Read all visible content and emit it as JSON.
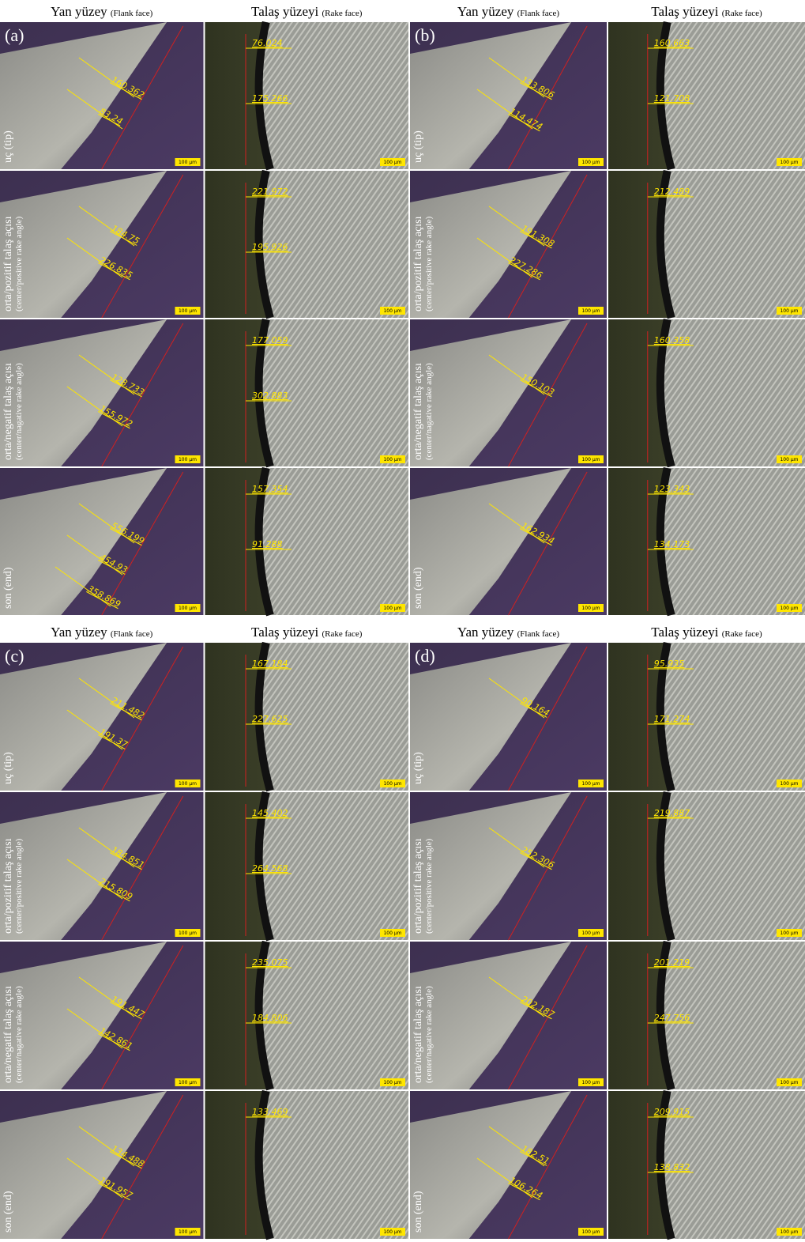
{
  "column_headers": [
    {
      "main": "Yan yüzey",
      "sub": "(Flank face)"
    },
    {
      "main": "Talaş yüzeyi",
      "sub": "(Rake face)"
    }
  ],
  "row_labels": [
    {
      "main": "uç (tip)"
    },
    {
      "main": "orta/pozitif talaş açısı",
      "sub": "(center/positive rake angle)"
    },
    {
      "main": "orta/negatif talaş açısı",
      "sub": "(center/nagative rake angle)"
    },
    {
      "main": "son (end)"
    }
  ],
  "scale_bar_label": "100 µm",
  "panels": [
    {
      "label": "(a)",
      "flank": [
        [
          160.362,
          83.24
        ],
        [
          184.75,
          226.835
        ],
        [
          128.733,
          155.972
        ],
        [
          556.199,
          454.93,
          358.869
        ]
      ],
      "rake": [
        [
          76.024,
          175.266
        ],
        [
          221.972,
          195.926
        ],
        [
          177.059,
          302.883
        ],
        [
          157.354,
          91.288
        ]
      ]
    },
    {
      "label": "(b)",
      "flank": [
        [
          133.806,
          114.474
        ],
        [
          191.308,
          227.286
        ],
        [
          150.103
        ],
        [
          162.934
        ]
      ],
      "rake": [
        [
          160.663,
          121.708
        ],
        [
          212.489
        ],
        [
          160.358
        ],
        [
          123.343,
          134.173
        ]
      ]
    },
    {
      "label": "(c)",
      "flank": [
        [
          211.482,
          191.37
        ],
        [
          184.851,
          215.809
        ],
        [
          191.447,
          142.861
        ],
        [
          134.488,
          191.957
        ]
      ],
      "rake": [
        [
          167.184,
          227.625
        ],
        [
          145.402,
          264.568
        ],
        [
          235.075,
          184.806
        ],
        [
          133.469
        ]
      ]
    },
    {
      "label": "(d)",
      "flank": [
        [
          90.164
        ],
        [
          252.306
        ],
        [
          202.187
        ],
        [
          182.51,
          106.264
        ]
      ],
      "rake": [
        [
          95.935,
          171.274
        ],
        [
          219.887
        ],
        [
          201.219,
          247.756
        ],
        [
          209.915,
          138.832
        ]
      ]
    }
  ]
}
